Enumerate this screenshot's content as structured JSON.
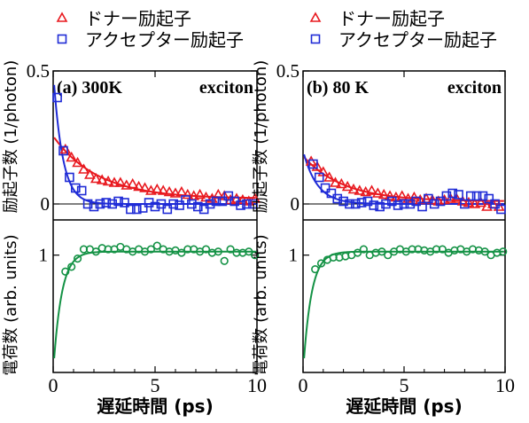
{
  "legend": {
    "donor_label": "ドナー励起子",
    "acceptor_label": "アクセプター励起子"
  },
  "chart_data": [
    {
      "panel": "a",
      "type": "scatter",
      "panel_label": "(a) 300K",
      "annotation": "exciton",
      "xlabel": "遅延時間 (ps)",
      "xlim": [
        0,
        10
      ],
      "x_ticks": [
        0,
        5,
        10
      ],
      "x_tick_labels": [
        "0",
        "5",
        "10"
      ],
      "top": {
        "ylabel": "励起子数 (1/photon)",
        "ylim": [
          -0.06,
          0.5
        ],
        "y_ticks": [
          0,
          0.5
        ],
        "y_tick_labels": [
          "0",
          "0.5"
        ],
        "series": [
          {
            "name": "ドナー励起子",
            "marker": "triangle",
            "color": "#e8191f",
            "x": [
              0.6,
              0.9,
              1.2,
              1.5,
              1.8,
              2.1,
              2.4,
              2.7,
              3.0,
              3.3,
              3.6,
              3.9,
              4.2,
              4.5,
              4.8,
              5.1,
              5.4,
              5.7,
              6.0,
              6.3,
              6.6,
              6.9,
              7.2,
              7.5,
              7.8,
              8.1,
              8.4,
              8.7,
              9.0,
              9.3,
              9.6,
              9.9
            ],
            "y": [
              0.205,
              0.175,
              0.155,
              0.13,
              0.11,
              0.095,
              0.09,
              0.085,
              0.08,
              0.08,
              0.07,
              0.075,
              0.065,
              0.06,
              0.05,
              0.055,
              0.05,
              0.045,
              0.04,
              0.045,
              0.035,
              0.03,
              0.035,
              0.025,
              0.02,
              0.035,
              0.03,
              0.015,
              0.02,
              0.015,
              0.01,
              0.02
            ]
          },
          {
            "name": "アクセプター励起子",
            "marker": "square",
            "color": "#1f2bd6",
            "x": [
              0.2,
              0.5,
              0.8,
              1.1,
              1.4,
              1.7,
              2.0,
              2.3,
              2.6,
              2.9,
              3.2,
              3.5,
              3.8,
              4.1,
              4.4,
              4.7,
              5.0,
              5.3,
              5.6,
              5.9,
              6.2,
              6.5,
              6.8,
              7.1,
              7.4,
              7.7,
              8.0,
              8.3,
              8.6,
              8.9,
              9.2,
              9.5,
              9.8
            ],
            "y": [
              0.4,
              0.2,
              0.1,
              0.06,
              0.05,
              0.0,
              -0.01,
              0.0,
              0.005,
              0.0,
              0.01,
              0.005,
              -0.02,
              -0.02,
              -0.015,
              0.005,
              -0.01,
              0.0,
              -0.02,
              0.0,
              -0.005,
              0.015,
              0.0,
              -0.01,
              -0.02,
              0.0,
              0.01,
              0.01,
              0.03,
              0.01,
              -0.005,
              0.0,
              0.0
            ]
          }
        ]
      },
      "bottom": {
        "ylabel": "電荷数 (arb. units)",
        "ylim": [
          0,
          1.3
        ],
        "y_ticks": [
          1
        ],
        "y_tick_labels": [
          "1"
        ],
        "series": [
          {
            "name": "",
            "marker": "circle",
            "color": "#149245",
            "x": [
              0.6,
              0.9,
              1.2,
              1.5,
              1.8,
              2.1,
              2.4,
              2.7,
              3.0,
              3.3,
              3.6,
              3.9,
              4.2,
              4.5,
              4.8,
              5.1,
              5.4,
              5.7,
              6.0,
              6.3,
              6.6,
              6.9,
              7.2,
              7.5,
              7.8,
              8.1,
              8.4,
              8.7,
              9.0,
              9.3,
              9.6,
              9.9
            ],
            "y": [
              0.86,
              0.9,
              0.97,
              1.05,
              1.05,
              1.03,
              1.06,
              1.05,
              1.05,
              1.07,
              1.05,
              1.03,
              1.05,
              1.03,
              1.05,
              1.08,
              1.05,
              1.03,
              1.04,
              1.02,
              1.05,
              1.05,
              1.03,
              1.05,
              1.02,
              1.03,
              0.95,
              1.05,
              1.02,
              1.02,
              1.03,
              1.0
            ]
          }
        ]
      }
    },
    {
      "panel": "b",
      "type": "scatter",
      "panel_label": "(b) 80 K",
      "annotation": "exciton",
      "xlabel": "遅延時間 (ps)",
      "xlim": [
        0,
        10
      ],
      "x_ticks": [
        0,
        5,
        10
      ],
      "x_tick_labels": [
        "0",
        "5",
        "10"
      ],
      "top": {
        "ylabel": "励起子数 (1/photon)",
        "ylim": [
          -0.06,
          0.5
        ],
        "y_ticks": [
          0,
          0.5
        ],
        "y_tick_labels": [
          "0",
          "0.5"
        ],
        "series": [
          {
            "name": "ドナー励起子",
            "marker": "triangle",
            "color": "#e8191f",
            "x": [
              0.4,
              0.7,
              1.0,
              1.3,
              1.6,
              1.9,
              2.2,
              2.5,
              2.8,
              3.1,
              3.4,
              3.7,
              4.0,
              4.3,
              4.6,
              4.9,
              5.2,
              5.5,
              5.8,
              6.1,
              6.4,
              6.7,
              7.0,
              7.3,
              7.6,
              7.9,
              8.2,
              8.5,
              8.8,
              9.1,
              9.4,
              9.7
            ],
            "y": [
              0.16,
              0.14,
              0.12,
              0.1,
              0.08,
              0.075,
              0.065,
              0.055,
              0.05,
              0.045,
              0.05,
              0.04,
              0.035,
              0.03,
              0.025,
              0.03,
              0.02,
              0.025,
              0.015,
              0.02,
              0.015,
              0.01,
              0.015,
              0.02,
              0.02,
              0.01,
              0.005,
              0.0,
              0.005,
              -0.01,
              0.0,
              -0.01
            ]
          },
          {
            "name": "アクセプター励起子",
            "marker": "square",
            "color": "#1f2bd6",
            "x": [
              0.5,
              0.8,
              1.1,
              1.4,
              1.7,
              2.0,
              2.3,
              2.6,
              2.9,
              3.2,
              3.5,
              3.8,
              4.1,
              4.4,
              4.7,
              5.0,
              5.3,
              5.6,
              5.9,
              6.2,
              6.5,
              6.8,
              7.1,
              7.4,
              7.7,
              8.0,
              8.3,
              8.6,
              8.9,
              9.2,
              9.5,
              9.8
            ],
            "y": [
              0.15,
              0.1,
              0.06,
              0.04,
              0.02,
              0.01,
              0.0,
              0.0,
              0.005,
              0.01,
              -0.005,
              -0.01,
              0.0,
              0.01,
              -0.005,
              0.0,
              0.0,
              0.01,
              -0.01,
              0.02,
              0.0,
              0.01,
              0.03,
              0.04,
              0.035,
              0.0,
              0.03,
              0.03,
              0.03,
              0.02,
              0.0,
              -0.02
            ]
          }
        ]
      },
      "bottom": {
        "ylabel": "電荷数 (arb. units)",
        "ylim": [
          0,
          1.3
        ],
        "y_ticks": [
          1
        ],
        "y_tick_labels": [
          "1"
        ],
        "series": [
          {
            "name": "",
            "marker": "circle",
            "color": "#149245",
            "x": [
              0.6,
              0.9,
              1.2,
              1.5,
              1.8,
              2.1,
              2.4,
              2.7,
              3.0,
              3.3,
              3.6,
              3.9,
              4.2,
              4.5,
              4.8,
              5.1,
              5.4,
              5.7,
              6.0,
              6.3,
              6.6,
              6.9,
              7.2,
              7.5,
              7.8,
              8.1,
              8.4,
              8.7,
              9.0,
              9.3,
              9.6,
              9.9
            ],
            "y": [
              0.88,
              0.93,
              0.96,
              0.98,
              0.98,
              0.99,
              1.0,
              1.02,
              1.05,
              1.0,
              1.02,
              1.03,
              1.0,
              1.03,
              1.05,
              1.03,
              1.05,
              1.05,
              1.04,
              1.03,
              1.05,
              1.05,
              1.02,
              1.04,
              1.05,
              1.03,
              1.05,
              1.04,
              1.03,
              1.0,
              1.02,
              1.03
            ]
          }
        ]
      }
    }
  ]
}
